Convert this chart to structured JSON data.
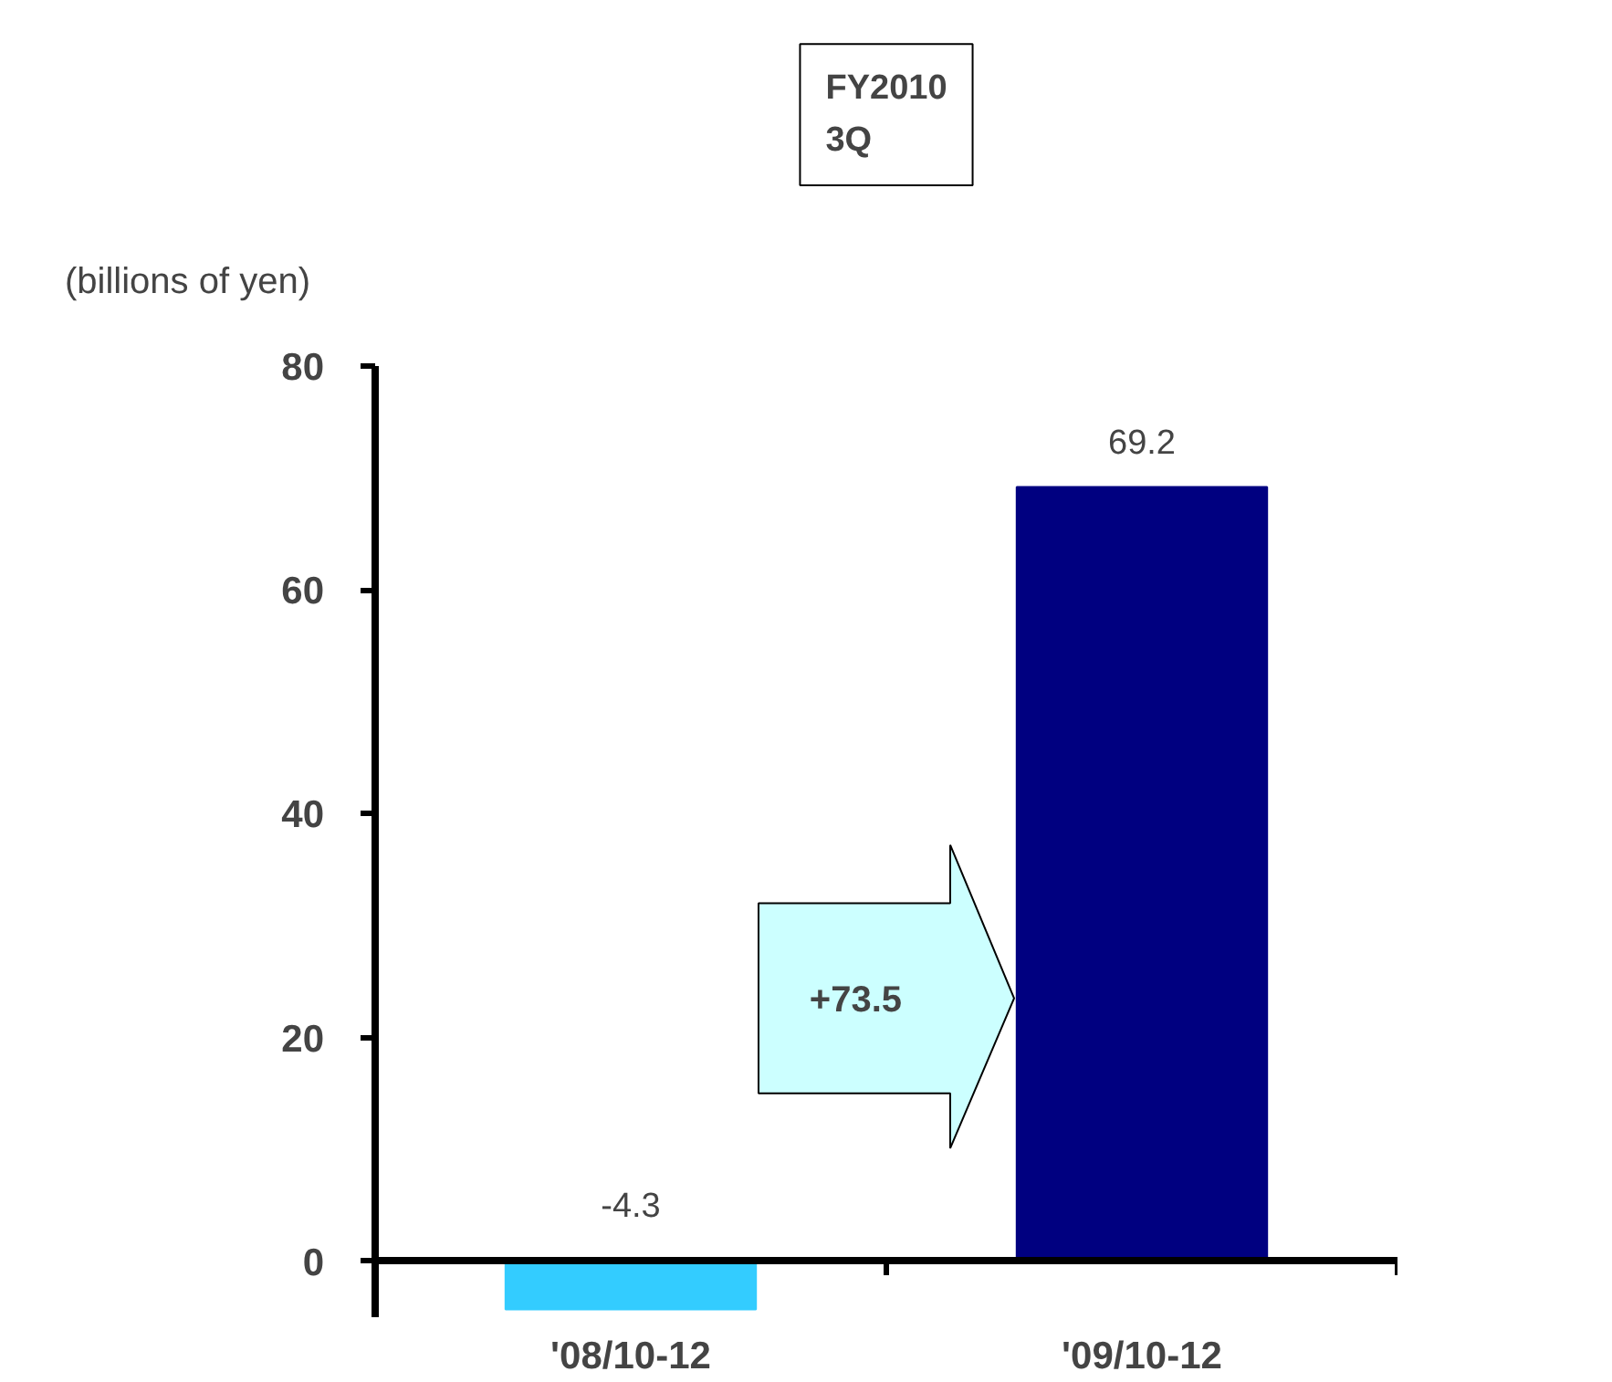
{
  "chart_data": {
    "type": "bar",
    "title": "FY2010\n3Q",
    "ylabel": "(billions of yen)",
    "categories": [
      "'08/10-12",
      "'09/10-12"
    ],
    "values": [
      -4.3,
      69.2
    ],
    "colors": [
      "#33ccff",
      "#000080"
    ],
    "ylim": [
      -5,
      80
    ],
    "yticks": [
      0,
      20,
      40,
      60,
      80
    ],
    "data_labels": true,
    "grid": false,
    "annotations": [
      "+73.5"
    ]
  }
}
